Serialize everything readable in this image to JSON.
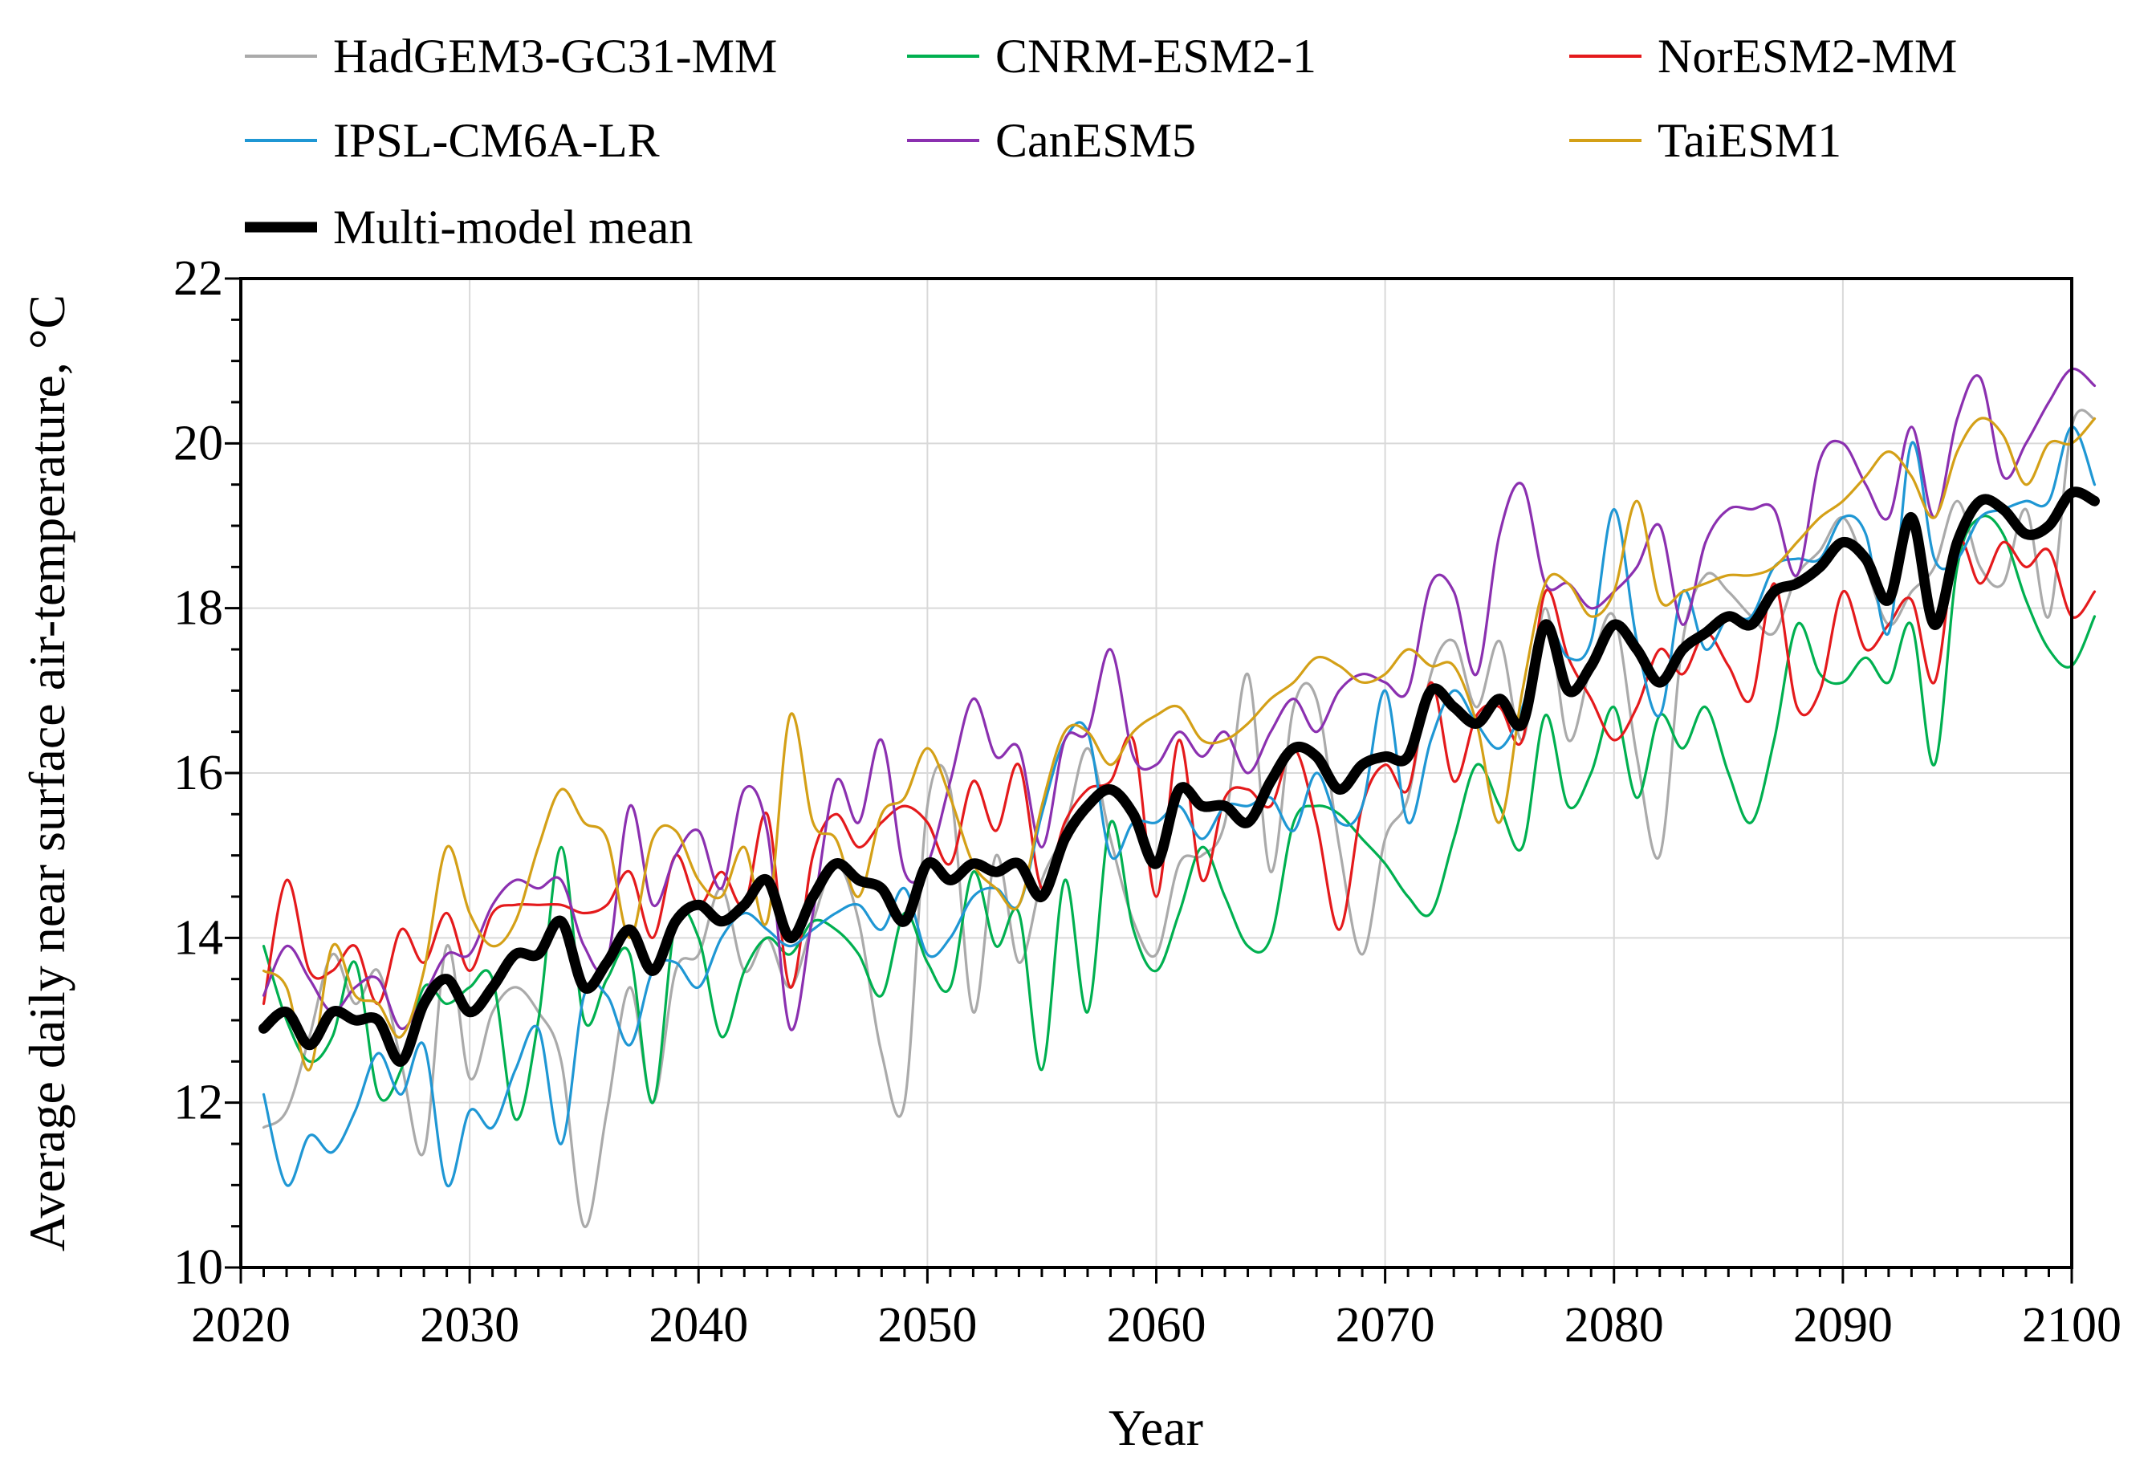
{
  "chart_data": {
    "type": "line",
    "title": "",
    "xlabel": "Year",
    "ylabel": "Average daily near surface air-temperature, °C",
    "xlim": [
      2020,
      2100
    ],
    "ylim": [
      10,
      22
    ],
    "xticks": [
      2020,
      2030,
      2040,
      2050,
      2060,
      2070,
      2080,
      2090,
      2100
    ],
    "yticks": [
      10,
      12,
      14,
      16,
      18,
      20,
      22
    ],
    "xtick_labels": [
      "2020",
      "2030",
      "2040",
      "2050",
      "2060",
      "2070",
      "2080",
      "2090",
      "2100"
    ],
    "ytick_labels": [
      "10",
      "12",
      "14",
      "16",
      "18",
      "20",
      "22"
    ],
    "grid": true,
    "legend_position": "top",
    "x_start": 2021,
    "x_step": 1,
    "series": [
      {
        "name": "HadGEM3-GC31-MM",
        "color": "#aaaaaa",
        "width": "thin",
        "values": [
          11.7,
          11.9,
          12.8,
          13.8,
          13.2,
          13.6,
          12.5,
          11.4,
          13.9,
          12.3,
          13.1,
          13.4,
          13.1,
          12.5,
          10.5,
          11.9,
          13.4,
          12.0,
          13.6,
          13.8,
          14.6,
          13.6,
          14.0,
          13.4,
          14.2,
          14.9,
          14.2,
          12.6,
          12.0,
          15.6,
          15.8,
          13.1,
          15.0,
          13.7,
          14.7,
          15.3,
          16.3,
          15.2,
          14.2,
          13.8,
          14.9,
          15.0,
          15.4,
          17.2,
          14.8,
          16.8,
          16.9,
          15.1,
          13.8,
          15.2,
          15.7,
          17.2,
          17.6,
          16.8,
          17.6,
          16.4,
          18.0,
          16.4,
          17.3,
          17.9,
          16.2,
          15.0,
          17.6,
          18.4,
          18.2,
          17.9,
          17.7,
          18.4,
          18.7,
          19.1,
          18.5,
          17.8,
          18.2,
          18.5,
          19.3,
          18.5,
          18.3,
          19.2,
          17.9,
          20.2,
          20.3
        ]
      },
      {
        "name": "CNRM-ESM2-1",
        "color": "#00b050",
        "width": "thin",
        "values": [
          13.9,
          13.0,
          12.5,
          12.8,
          13.7,
          12.1,
          12.4,
          13.4,
          13.2,
          13.4,
          13.5,
          11.8,
          13.0,
          15.1,
          13.0,
          13.5,
          13.8,
          12.0,
          14.2,
          14.0,
          12.8,
          13.6,
          14.0,
          13.8,
          14.2,
          14.1,
          13.8,
          13.3,
          14.3,
          13.7,
          13.4,
          14.8,
          13.9,
          14.3,
          12.4,
          14.7,
          13.1,
          15.4,
          14.1,
          13.6,
          14.3,
          15.1,
          14.5,
          13.9,
          14.0,
          15.4,
          15.6,
          15.5,
          15.2,
          14.9,
          14.5,
          14.3,
          15.2,
          16.1,
          15.6,
          15.1,
          16.7,
          15.6,
          16.0,
          16.8,
          15.7,
          16.7,
          16.3,
          16.8,
          16.0,
          15.4,
          16.4,
          17.8,
          17.2,
          17.1,
          17.4,
          17.1,
          17.8,
          16.1,
          18.5,
          19.1,
          18.9,
          18.1,
          17.5,
          17.3,
          17.9
        ]
      },
      {
        "name": "NorESM2-MM",
        "color": "#e41a1c",
        "width": "thin",
        "values": [
          13.2,
          14.7,
          13.6,
          13.6,
          13.9,
          13.2,
          14.1,
          13.7,
          14.3,
          13.6,
          14.3,
          14.4,
          14.4,
          14.4,
          14.3,
          14.4,
          14.8,
          14.0,
          15.0,
          14.4,
          14.8,
          14.4,
          15.5,
          13.4,
          15.0,
          15.5,
          15.1,
          15.4,
          15.6,
          15.4,
          14.9,
          15.9,
          15.3,
          16.1,
          14.6,
          15.4,
          15.8,
          15.9,
          16.4,
          14.5,
          16.4,
          14.7,
          15.7,
          15.8,
          15.6,
          16.3,
          15.4,
          14.1,
          15.6,
          16.1,
          15.8,
          17.1,
          15.9,
          16.7,
          16.8,
          16.4,
          18.2,
          17.4,
          16.9,
          16.4,
          16.8,
          17.5,
          17.2,
          17.7,
          17.3,
          16.9,
          18.3,
          16.8,
          17.0,
          18.2,
          17.5,
          17.8,
          18.1,
          17.1,
          18.8,
          18.3,
          18.8,
          18.5,
          18.7,
          17.9,
          18.2
        ]
      },
      {
        "name": "IPSL-CM6A-LR",
        "color": "#1f97d4",
        "width": "thin",
        "values": [
          12.1,
          11.0,
          11.6,
          11.4,
          11.9,
          12.6,
          12.1,
          12.7,
          11.0,
          11.9,
          11.7,
          12.4,
          12.9,
          11.5,
          13.3,
          13.3,
          12.7,
          13.6,
          13.7,
          13.4,
          14.0,
          14.3,
          14.1,
          13.9,
          14.1,
          14.3,
          14.4,
          14.1,
          14.6,
          13.8,
          14.0,
          14.5,
          14.6,
          14.4,
          15.5,
          16.4,
          16.5,
          15.0,
          15.4,
          15.4,
          15.6,
          15.2,
          15.6,
          15.6,
          15.7,
          15.3,
          16.0,
          15.4,
          15.6,
          17.0,
          15.4,
          16.4,
          17.0,
          16.6,
          16.3,
          16.8,
          17.8,
          17.4,
          17.6,
          19.2,
          17.6,
          16.7,
          18.2,
          17.5,
          17.9,
          17.9,
          18.5,
          18.6,
          18.6,
          19.1,
          18.9,
          17.7,
          20.0,
          18.6,
          18.6,
          19.1,
          19.2,
          19.3,
          19.3,
          20.2,
          19.5
        ]
      },
      {
        "name": "CanESM5",
        "color": "#8b30b0",
        "width": "thin",
        "values": [
          13.3,
          13.9,
          13.5,
          13.1,
          13.4,
          13.5,
          12.9,
          13.3,
          13.8,
          13.8,
          14.4,
          14.7,
          14.6,
          14.7,
          13.9,
          13.7,
          15.6,
          14.4,
          15.0,
          15.3,
          14.6,
          15.8,
          15.3,
          12.9,
          14.3,
          15.9,
          15.4,
          16.4,
          14.8,
          14.9,
          15.9,
          16.9,
          16.2,
          16.3,
          15.1,
          16.4,
          16.5,
          17.5,
          16.2,
          16.1,
          16.5,
          16.2,
          16.5,
          16.0,
          16.5,
          16.9,
          16.5,
          17.0,
          17.2,
          17.1,
          17.0,
          18.3,
          18.2,
          17.2,
          18.9,
          19.5,
          18.3,
          18.3,
          18.0,
          18.2,
          18.5,
          19.0,
          17.8,
          18.8,
          19.2,
          19.2,
          19.2,
          18.4,
          19.8,
          20.0,
          19.5,
          19.1,
          20.2,
          19.1,
          20.3,
          20.8,
          19.6,
          20.0,
          20.5,
          20.9,
          20.7
        ]
      },
      {
        "name": "TaiESM1",
        "color": "#d4a017",
        "width": "thin",
        "values": [
          13.6,
          13.4,
          12.4,
          13.9,
          13.3,
          13.2,
          12.8,
          13.6,
          15.1,
          14.3,
          13.9,
          14.2,
          15.1,
          15.8,
          15.4,
          15.2,
          14.0,
          15.2,
          15.3,
          14.7,
          14.5,
          15.1,
          14.2,
          16.7,
          15.4,
          15.2,
          14.5,
          15.5,
          15.7,
          16.3,
          15.7,
          14.9,
          14.6,
          14.4,
          15.6,
          16.5,
          16.5,
          16.1,
          16.5,
          16.7,
          16.8,
          16.4,
          16.4,
          16.6,
          16.9,
          17.1,
          17.4,
          17.3,
          17.1,
          17.2,
          17.5,
          17.3,
          17.3,
          16.6,
          15.4,
          17.0,
          18.3,
          18.3,
          17.9,
          18.2,
          19.3,
          18.1,
          18.2,
          18.3,
          18.4,
          18.4,
          18.5,
          18.8,
          19.1,
          19.3,
          19.6,
          19.9,
          19.6,
          19.1,
          19.9,
          20.3,
          20.1,
          19.5,
          20.0,
          20.0,
          20.3
        ]
      },
      {
        "name": "Multi-model mean",
        "color": "#000000",
        "width": "thick",
        "values": [
          12.9,
          13.1,
          12.7,
          13.1,
          13.0,
          13.0,
          12.5,
          13.2,
          13.5,
          13.1,
          13.4,
          13.8,
          13.8,
          14.2,
          13.4,
          13.7,
          14.1,
          13.6,
          14.2,
          14.4,
          14.2,
          14.4,
          14.7,
          14.0,
          14.5,
          14.9,
          14.7,
          14.6,
          14.2,
          14.9,
          14.7,
          14.9,
          14.8,
          14.9,
          14.5,
          15.2,
          15.6,
          15.8,
          15.5,
          14.9,
          15.8,
          15.6,
          15.6,
          15.4,
          15.9,
          16.3,
          16.2,
          15.8,
          16.1,
          16.2,
          16.2,
          17.0,
          16.8,
          16.6,
          16.9,
          16.6,
          17.8,
          17.0,
          17.3,
          17.8,
          17.5,
          17.1,
          17.5,
          17.7,
          17.9,
          17.8,
          18.2,
          18.3,
          18.5,
          18.8,
          18.6,
          18.1,
          19.1,
          17.8,
          18.8,
          19.3,
          19.2,
          18.9,
          19.0,
          19.4,
          19.3
        ]
      }
    ]
  }
}
